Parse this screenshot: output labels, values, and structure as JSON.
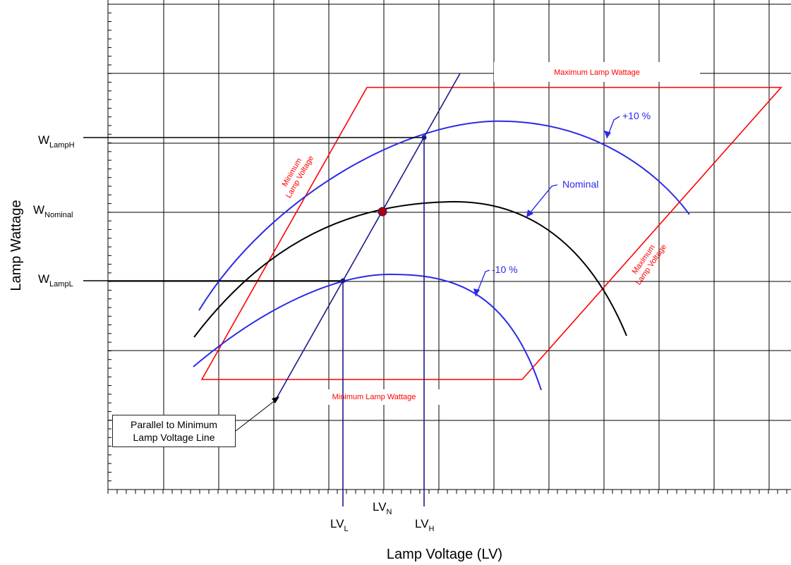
{
  "axes": {
    "x_label": "Lamp Voltage (LV)",
    "y_label": "Lamp Wattage"
  },
  "y_labels": [
    {
      "main": "W",
      "sub": "LampH"
    },
    {
      "main": "W",
      "sub": "Nominal"
    },
    {
      "main": "W",
      "sub": "LampL"
    }
  ],
  "x_labels": [
    {
      "main": "LV",
      "sub": "L"
    },
    {
      "main": "LV",
      "sub": "N"
    },
    {
      "main": "LV",
      "sub": "H"
    }
  ],
  "boundary_labels": {
    "max_wattage": "Maximum Lamp Wattage",
    "min_wattage": "Minimum Lamp Wattage",
    "min_voltage_line1": "Minimum",
    "min_voltage_line2": "Lamp Voltage",
    "max_voltage_line1": "Maximum",
    "max_voltage_line2": "Lamp Voltage"
  },
  "curve_labels": {
    "plus10": "+10 %",
    "nominal": "Nominal",
    "minus10": "-10 %"
  },
  "callout": {
    "line1": "Parallel to Minimum",
    "line2": "Lamp Voltage Line"
  },
  "colors": {
    "grid": "#000000",
    "boundary": "#ff0000",
    "curve_blue": "#2a2ae8",
    "curve_nominal": "#000000",
    "construction": "#1a1a8c",
    "nominal_point": "#b30000"
  }
}
